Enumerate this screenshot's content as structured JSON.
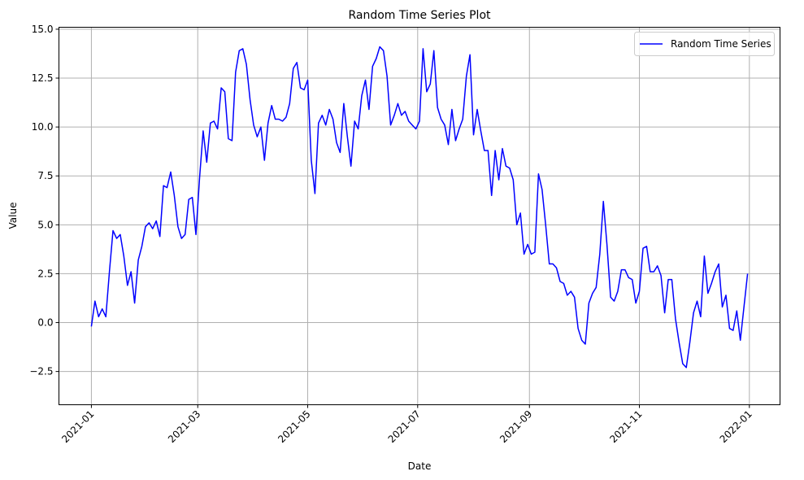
{
  "chart_data": {
    "type": "line",
    "title": "Random Time Series Plot",
    "xlabel": "Date",
    "ylabel": "Value",
    "x_ticks": [
      "2021-01",
      "2021-03",
      "2021-05",
      "2021-07",
      "2021-09",
      "2021-11",
      "2022-01"
    ],
    "y_ticks": [
      "−2.5",
      "0.0",
      "2.5",
      "5.0",
      "7.5",
      "10.0",
      "12.5",
      "15.0"
    ],
    "ylim": [
      -4.2,
      15.1
    ],
    "xlim": [
      "2020-12-14",
      "2022-01-18"
    ],
    "grid": true,
    "legend_position": "top-right",
    "colors": {
      "series": "#0000ff",
      "grid": "#b0b0b0"
    },
    "series": [
      {
        "name": "Random Time Series",
        "x_start": "2021-01-01",
        "x_end": "2021-12-31",
        "points": [
          [
            "2021-01-01",
            -0.2
          ],
          [
            "2021-01-03",
            1.1
          ],
          [
            "2021-01-05",
            0.3
          ],
          [
            "2021-01-07",
            0.7
          ],
          [
            "2021-01-09",
            0.3
          ],
          [
            "2021-01-11",
            2.6
          ],
          [
            "2021-01-13",
            4.7
          ],
          [
            "2021-01-15",
            4.3
          ],
          [
            "2021-01-17",
            4.5
          ],
          [
            "2021-01-19",
            3.4
          ],
          [
            "2021-01-21",
            1.9
          ],
          [
            "2021-01-23",
            2.6
          ],
          [
            "2021-01-25",
            1.0
          ],
          [
            "2021-01-27",
            3.2
          ],
          [
            "2021-01-29",
            3.9
          ],
          [
            "2021-01-31",
            4.9
          ],
          [
            "2021-02-02",
            5.1
          ],
          [
            "2021-02-04",
            4.8
          ],
          [
            "2021-02-06",
            5.2
          ],
          [
            "2021-02-08",
            4.4
          ],
          [
            "2021-02-10",
            7.0
          ],
          [
            "2021-02-12",
            6.9
          ],
          [
            "2021-02-14",
            7.7
          ],
          [
            "2021-02-16",
            6.5
          ],
          [
            "2021-02-18",
            4.9
          ],
          [
            "2021-02-20",
            4.3
          ],
          [
            "2021-02-22",
            4.5
          ],
          [
            "2021-02-24",
            6.3
          ],
          [
            "2021-02-26",
            6.4
          ],
          [
            "2021-02-28",
            4.5
          ],
          [
            "2021-03-02",
            7.4
          ],
          [
            "2021-03-04",
            9.8
          ],
          [
            "2021-03-06",
            8.2
          ],
          [
            "2021-03-08",
            10.2
          ],
          [
            "2021-03-10",
            10.3
          ],
          [
            "2021-03-12",
            9.9
          ],
          [
            "2021-03-14",
            12.0
          ],
          [
            "2021-03-16",
            11.8
          ],
          [
            "2021-03-18",
            9.4
          ],
          [
            "2021-03-20",
            9.3
          ],
          [
            "2021-03-22",
            12.8
          ],
          [
            "2021-03-24",
            13.9
          ],
          [
            "2021-03-26",
            14.0
          ],
          [
            "2021-03-28",
            13.2
          ],
          [
            "2021-03-30",
            11.4
          ],
          [
            "2021-04-01",
            10.1
          ],
          [
            "2021-04-03",
            9.5
          ],
          [
            "2021-04-05",
            10.0
          ],
          [
            "2021-04-07",
            8.3
          ],
          [
            "2021-04-09",
            10.2
          ],
          [
            "2021-04-11",
            11.1
          ],
          [
            "2021-04-13",
            10.4
          ],
          [
            "2021-04-15",
            10.4
          ],
          [
            "2021-04-17",
            10.3
          ],
          [
            "2021-04-19",
            10.5
          ],
          [
            "2021-04-21",
            11.2
          ],
          [
            "2021-04-23",
            13.0
          ],
          [
            "2021-04-25",
            13.3
          ],
          [
            "2021-04-27",
            12.0
          ],
          [
            "2021-04-29",
            11.9
          ],
          [
            "2021-05-01",
            12.4
          ],
          [
            "2021-05-03",
            8.3
          ],
          [
            "2021-05-05",
            6.6
          ],
          [
            "2021-05-07",
            10.2
          ],
          [
            "2021-05-09",
            10.6
          ],
          [
            "2021-05-11",
            10.1
          ],
          [
            "2021-05-13",
            10.9
          ],
          [
            "2021-05-15",
            10.4
          ],
          [
            "2021-05-17",
            9.2
          ],
          [
            "2021-05-19",
            8.7
          ],
          [
            "2021-05-21",
            11.2
          ],
          [
            "2021-05-23",
            9.5
          ],
          [
            "2021-05-25",
            8.0
          ],
          [
            "2021-05-27",
            10.3
          ],
          [
            "2021-05-29",
            9.9
          ],
          [
            "2021-05-31",
            11.6
          ],
          [
            "2021-06-02",
            12.4
          ],
          [
            "2021-06-04",
            10.9
          ],
          [
            "2021-06-06",
            13.1
          ],
          [
            "2021-06-08",
            13.5
          ],
          [
            "2021-06-10",
            14.1
          ],
          [
            "2021-06-12",
            13.9
          ],
          [
            "2021-06-14",
            12.6
          ],
          [
            "2021-06-16",
            10.1
          ],
          [
            "2021-06-18",
            10.6
          ],
          [
            "2021-06-20",
            11.2
          ],
          [
            "2021-06-22",
            10.6
          ],
          [
            "2021-06-24",
            10.8
          ],
          [
            "2021-06-26",
            10.3
          ],
          [
            "2021-06-28",
            10.1
          ],
          [
            "2021-06-30",
            9.9
          ],
          [
            "2021-07-02",
            10.3
          ],
          [
            "2021-07-04",
            14.0
          ],
          [
            "2021-07-06",
            11.8
          ],
          [
            "2021-07-08",
            12.2
          ],
          [
            "2021-07-10",
            13.9
          ],
          [
            "2021-07-12",
            11.0
          ],
          [
            "2021-07-14",
            10.4
          ],
          [
            "2021-07-16",
            10.1
          ],
          [
            "2021-07-18",
            9.1
          ],
          [
            "2021-07-20",
            10.9
          ],
          [
            "2021-07-22",
            9.3
          ],
          [
            "2021-07-24",
            9.9
          ],
          [
            "2021-07-26",
            10.4
          ],
          [
            "2021-07-28",
            12.6
          ],
          [
            "2021-07-30",
            13.7
          ],
          [
            "2021-08-01",
            9.6
          ],
          [
            "2021-08-03",
            10.9
          ],
          [
            "2021-08-05",
            9.8
          ],
          [
            "2021-08-07",
            8.8
          ],
          [
            "2021-08-09",
            8.8
          ],
          [
            "2021-08-11",
            6.5
          ],
          [
            "2021-08-13",
            8.8
          ],
          [
            "2021-08-15",
            7.3
          ],
          [
            "2021-08-17",
            8.9
          ],
          [
            "2021-08-19",
            8.0
          ],
          [
            "2021-08-21",
            7.9
          ],
          [
            "2021-08-23",
            7.3
          ],
          [
            "2021-08-25",
            5.0
          ],
          [
            "2021-08-27",
            5.6
          ],
          [
            "2021-08-29",
            3.5
          ],
          [
            "2021-08-31",
            4.0
          ],
          [
            "2021-09-02",
            3.5
          ],
          [
            "2021-09-04",
            3.6
          ],
          [
            "2021-09-06",
            7.6
          ],
          [
            "2021-09-08",
            6.8
          ],
          [
            "2021-09-10",
            5.0
          ],
          [
            "2021-09-12",
            3.0
          ],
          [
            "2021-09-14",
            3.0
          ],
          [
            "2021-09-16",
            2.8
          ],
          [
            "2021-09-18",
            2.1
          ],
          [
            "2021-09-20",
            2.0
          ],
          [
            "2021-09-22",
            1.4
          ],
          [
            "2021-09-24",
            1.6
          ],
          [
            "2021-09-26",
            1.3
          ],
          [
            "2021-09-28",
            -0.3
          ],
          [
            "2021-09-30",
            -0.9
          ],
          [
            "2021-10-02",
            -1.1
          ],
          [
            "2021-10-04",
            1.0
          ],
          [
            "2021-10-06",
            1.5
          ],
          [
            "2021-10-08",
            1.8
          ],
          [
            "2021-10-10",
            3.5
          ],
          [
            "2021-10-12",
            6.2
          ],
          [
            "2021-10-14",
            4.0
          ],
          [
            "2021-10-16",
            1.3
          ],
          [
            "2021-10-18",
            1.1
          ],
          [
            "2021-10-20",
            1.6
          ],
          [
            "2021-10-22",
            2.7
          ],
          [
            "2021-10-24",
            2.7
          ],
          [
            "2021-10-26",
            2.3
          ],
          [
            "2021-10-28",
            2.2
          ],
          [
            "2021-10-30",
            1.0
          ],
          [
            "2021-11-01",
            1.6
          ],
          [
            "2021-11-03",
            3.8
          ],
          [
            "2021-11-05",
            3.9
          ],
          [
            "2021-11-07",
            2.6
          ],
          [
            "2021-11-09",
            2.6
          ],
          [
            "2021-11-11",
            2.9
          ],
          [
            "2021-11-13",
            2.4
          ],
          [
            "2021-11-15",
            0.5
          ],
          [
            "2021-11-17",
            2.2
          ],
          [
            "2021-11-19",
            2.2
          ],
          [
            "2021-11-21",
            0.2
          ],
          [
            "2021-11-23",
            -1.0
          ],
          [
            "2021-11-25",
            -2.1
          ],
          [
            "2021-11-27",
            -2.3
          ],
          [
            "2021-11-29",
            -1.0
          ],
          [
            "2021-12-01",
            0.5
          ],
          [
            "2021-12-03",
            1.1
          ],
          [
            "2021-12-05",
            0.3
          ],
          [
            "2021-12-07",
            3.4
          ],
          [
            "2021-12-09",
            1.5
          ],
          [
            "2021-12-11",
            2.0
          ],
          [
            "2021-12-13",
            2.6
          ],
          [
            "2021-12-15",
            3.0
          ],
          [
            "2021-12-17",
            0.8
          ],
          [
            "2021-12-19",
            1.4
          ],
          [
            "2021-12-21",
            -0.3
          ],
          [
            "2021-12-23",
            -0.4
          ],
          [
            "2021-12-25",
            0.6
          ],
          [
            "2021-12-27",
            -0.9
          ],
          [
            "2021-12-31",
            2.5
          ]
        ]
      }
    ]
  }
}
